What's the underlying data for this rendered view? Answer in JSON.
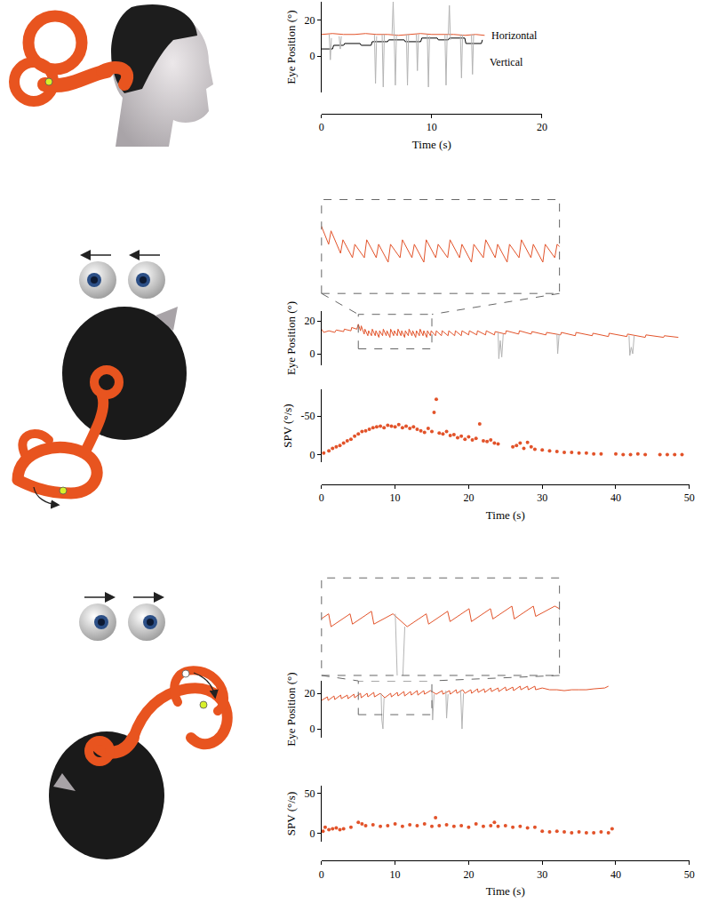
{
  "chart_data": [
    {
      "type": "line",
      "xlabel": "Time (s)",
      "ylabel": "Eye Position (°)",
      "xlim": [
        0,
        20
      ],
      "xticks": [
        0,
        10,
        20
      ],
      "ylim": [
        -20,
        30
      ],
      "yticks": [
        0,
        20
      ],
      "series": [
        {
          "name": "Horizontal",
          "color": "#e2532a",
          "x": [
            0,
            1,
            2,
            3,
            4,
            5,
            6,
            7,
            8,
            9,
            10,
            11,
            12,
            13,
            14,
            14.8
          ],
          "values": [
            12,
            12.5,
            12,
            12,
            12.5,
            12,
            12,
            11.5,
            12,
            12.5,
            12,
            12,
            12,
            11.5,
            12,
            11.5
          ]
        },
        {
          "name": "Vertical",
          "color": "#000000",
          "x": [
            0,
            1,
            1.1,
            2,
            2.1,
            3.5,
            3.6,
            4.5,
            4.6,
            6,
            6.1,
            7.5,
            7.6,
            9,
            9.1,
            10.5,
            10.6,
            11.5,
            11.6,
            13,
            13.1,
            14.5,
            14.6
          ],
          "values": [
            4,
            4,
            6,
            6,
            7,
            7,
            6,
            6,
            8,
            8,
            9,
            9,
            8,
            8,
            10,
            10,
            9,
            9,
            10,
            10,
            7,
            7,
            9
          ]
        },
        {
          "color": "#b4b4b4",
          "x": [
            0.7,
            0.8,
            0.9,
            0.9,
            1.6,
            1.7,
            1.8,
            1.8,
            4.8,
            4.9,
            5.0,
            5.0,
            5.5,
            5.6,
            5.7,
            5.7,
            6.4,
            6.5,
            6.6,
            6.7,
            6.8,
            6.8,
            7.7,
            7.8,
            7.9,
            7.9,
            8.6,
            8.7,
            8.8,
            8.8,
            9.6,
            9.7,
            9.8,
            9.8,
            11.2,
            11.3,
            11.4,
            11.4,
            11.5,
            11.6,
            11.7,
            11.7,
            12.6,
            12.7,
            12.8,
            12.8,
            13.6,
            13.7,
            13.8
          ],
          "values": [
            12,
            -2,
            10,
            null,
            11,
            4,
            11,
            null,
            12,
            -15,
            11,
            null,
            12,
            -17,
            12,
            null,
            12,
            30,
            10,
            -16,
            12,
            null,
            12,
            -16,
            12,
            null,
            12,
            -8,
            12,
            null,
            12,
            -17,
            11,
            null,
            12,
            -16,
            12,
            null,
            12,
            28,
            9,
            null,
            12,
            -12,
            12,
            null,
            12,
            -10,
            12
          ]
        }
      ]
    },
    {
      "type": "line",
      "ylabel": "Eye Position (°)",
      "tick_labels": "y",
      "xlim": [
        0,
        50
      ],
      "ylim": [
        -7,
        26
      ],
      "yticks": [
        0,
        20
      ],
      "inset": {
        "xlim": [
          5,
          15
        ],
        "ylim": [
          3,
          24
        ]
      },
      "series": [
        {
          "color": "#e2532a",
          "x": [
            0,
            0.3,
            1,
            1.8,
            2,
            3,
            3.1,
            4,
            4.1,
            4.8,
            5,
            5.3,
            5.4,
            5.8,
            5.9,
            6.3,
            6.4,
            6.8,
            6.9,
            7.3,
            7.4,
            7.8,
            7.9,
            8.3,
            8.4,
            8.8,
            8.9,
            9.3,
            9.4,
            9.8,
            9.9,
            10.3,
            10.4,
            10.8,
            10.9,
            11.3,
            11.4,
            11.8,
            11.9,
            12.3,
            12.4,
            12.8,
            12.9,
            13.3,
            13.4,
            13.8,
            13.9,
            14.3,
            14.4,
            14.8,
            14.9,
            15.5,
            15.6,
            16.3,
            16.4,
            17.2,
            17.3,
            18.1,
            18.2,
            19,
            19.1,
            20,
            20.1,
            21.1,
            21.2,
            22.3,
            22.4,
            23.5,
            23.6,
            25,
            25.1,
            26.8,
            26.9,
            28.5,
            28.6,
            30.5,
            30.6,
            32.5,
            32.6,
            34.5,
            34.6,
            36.8,
            36.9,
            39,
            39.1,
            41.5,
            41.6,
            44,
            44.1,
            46.5,
            46.6,
            48.5
          ],
          "values": [
            15,
            13,
            14,
            13,
            14.5,
            13.5,
            15,
            14,
            16,
            15,
            18,
            14,
            17,
            12,
            15,
            11,
            14,
            11,
            15,
            11,
            14,
            10,
            14,
            11,
            15,
            11,
            14,
            10,
            15,
            11,
            14,
            11,
            15,
            11,
            14,
            10,
            14,
            11,
            15,
            11,
            14,
            10,
            14,
            11,
            15,
            11,
            14,
            10,
            14,
            11,
            14,
            11,
            14,
            11,
            14,
            11,
            14,
            11,
            14,
            11,
            14,
            11.5,
            14,
            11.5,
            14,
            11.5,
            14,
            11.5,
            13.5,
            12,
            14,
            12,
            14,
            12,
            13.5,
            11.5,
            13,
            11.5,
            13,
            11,
            13,
            11,
            12.5,
            10.5,
            12.5,
            10.5,
            12,
            10,
            11.5,
            10,
            11,
            10
          ]
        },
        {
          "color": "#b4b4b4",
          "x": [
            24,
            24.1,
            24.3,
            24.5,
            24.7,
            24.7,
            32,
            32.1,
            32.3,
            32.3,
            41.8,
            41.9,
            42.1,
            42.3,
            42.5
          ],
          "values": [
            13,
            -3,
            8,
            -2,
            12,
            null,
            12,
            0,
            12,
            null,
            11,
            -1,
            4,
            0,
            11
          ]
        }
      ]
    },
    {
      "type": "scatter",
      "xlabel": "Time (s)",
      "ylabel": "SPV (°/s)",
      "marker": "circle",
      "xlim": [
        0,
        50
      ],
      "xticks": [
        0,
        10,
        20,
        30,
        40,
        50
      ],
      "ylim": [
        10,
        -85
      ],
      "yticks": [
        -50,
        0
      ],
      "series": [
        {
          "color": "#e2532a",
          "x": [
            0.3,
            1,
            1.5,
            2,
            2.5,
            3,
            3.5,
            4,
            4.5,
            5,
            5.5,
            6,
            6.5,
            7,
            7.5,
            8,
            8.5,
            9,
            9.5,
            10,
            10.5,
            11,
            11.5,
            12,
            12.5,
            13,
            13.5,
            14,
            14.5,
            15,
            15.3,
            15.6,
            16,
            16.5,
            17,
            17.5,
            18,
            18.5,
            19,
            19.5,
            20,
            20.5,
            21,
            21.5,
            22,
            22.5,
            23,
            23.5,
            24,
            26,
            26.5,
            27,
            27.5,
            28,
            28.5,
            29,
            30,
            31,
            32,
            33,
            34,
            35,
            36,
            37,
            38,
            40,
            41,
            42,
            43,
            44,
            46,
            47,
            48,
            49
          ],
          "values": [
            -2,
            -5,
            -8,
            -10,
            -12,
            -15,
            -18,
            -20,
            -24,
            -27,
            -30,
            -31,
            -33,
            -35,
            -36,
            -37,
            -35,
            -38,
            -37,
            -36,
            -39,
            -35,
            -37,
            -34,
            -36,
            -33,
            -31,
            -29,
            -34,
            -30,
            -55,
            -72,
            -28,
            -27,
            -30,
            -25,
            -26,
            -22,
            -24,
            -20,
            -23,
            -19,
            -21,
            -40,
            -18,
            -17,
            -19,
            -15,
            -14,
            -10,
            -12,
            -15,
            -8,
            -16,
            -10,
            -7,
            -6,
            -5,
            -4,
            -3,
            -3,
            -2,
            -2,
            -1,
            -1,
            -1,
            0,
            0,
            -1,
            0,
            0,
            0,
            0,
            0
          ]
        }
      ]
    },
    {
      "type": "line",
      "ylabel": "Eye Position (°)",
      "tick_labels": "y",
      "xlim": [
        0,
        50
      ],
      "ylim": [
        -5,
        27
      ],
      "yticks": [
        0,
        20
      ],
      "inset": {
        "xlim": [
          5,
          15
        ],
        "ylim": [
          8,
          27
        ]
      },
      "series": [
        {
          "color": "#e2532a",
          "x": [
            0,
            0.8,
            0.9,
            1.7,
            1.8,
            2.6,
            2.7,
            3.5,
            3.6,
            4.4,
            4.5,
            5.3,
            5.4,
            6.2,
            6.3,
            7.1,
            7.2,
            8.0,
            8.6,
            9.4,
            9.5,
            10.3,
            10.4,
            11.2,
            11.3,
            12.1,
            12.2,
            13,
            13.1,
            13.9,
            14,
            14.8,
            15.6,
            16.4,
            16.5,
            17.4,
            17.5,
            18.3,
            18.4,
            19.2,
            19.5,
            20.3,
            20.4,
            21.2,
            21.3,
            22.1,
            22.2,
            23,
            23.1,
            24,
            24.1,
            25,
            25.1,
            26,
            26.1,
            27,
            27.1,
            28,
            28.1,
            29,
            29.1,
            30,
            31,
            32,
            33,
            34,
            35,
            36,
            37,
            38,
            38.5,
            39
          ],
          "values": [
            16,
            18,
            16,
            18.5,
            16.5,
            19,
            17,
            19,
            17,
            19.5,
            17.5,
            20,
            17.5,
            20,
            18,
            20.5,
            18,
            20,
            17.5,
            20,
            18,
            20.5,
            18.5,
            21,
            18.5,
            21,
            19,
            21.5,
            19,
            21.5,
            19.5,
            21.5,
            19.5,
            21.5,
            19.5,
            21.5,
            19.5,
            22,
            20,
            22,
            20,
            22,
            20,
            22.5,
            20.5,
            22.5,
            20.5,
            23,
            21,
            23,
            21,
            23.5,
            21.5,
            23.5,
            21.5,
            24,
            22,
            24,
            22,
            24,
            22,
            23,
            22,
            22,
            21.5,
            22,
            22,
            22,
            22.5,
            23,
            23,
            24
          ]
        },
        {
          "color": "#b4b4b4",
          "x": [
            8.1,
            8.2,
            8.35,
            8.5,
            8.5,
            15,
            15.1,
            15.3,
            15.3,
            16.9,
            17,
            17.2,
            17.2,
            18.9,
            19,
            19.1,
            19.3
          ],
          "values": [
            20,
            5,
            0,
            17.5,
            null,
            21.5,
            5,
            19.5,
            null,
            21.5,
            6,
            19.5,
            null,
            22,
            3,
            0,
            20
          ]
        }
      ]
    },
    {
      "type": "scatter",
      "xlabel": "Time (s)",
      "ylabel": "SPV (°/s)",
      "marker": "circle",
      "xlim": [
        0,
        50
      ],
      "xticks": [
        0,
        10,
        20,
        30,
        40,
        50
      ],
      "ylim": [
        -10,
        60
      ],
      "yticks": [
        0,
        50
      ],
      "series": [
        {
          "color": "#e2532a",
          "x": [
            0.2,
            0.5,
            1,
            1.5,
            2,
            2.5,
            3,
            4,
            5,
            5.5,
            6,
            7,
            8,
            9,
            10,
            11,
            12,
            13,
            14,
            15,
            15.5,
            16,
            17,
            18,
            19,
            20,
            21,
            22,
            23,
            23.5,
            24,
            25,
            26,
            27,
            28,
            29,
            30,
            31,
            32,
            33,
            34,
            35,
            36,
            37,
            38,
            39,
            39.5
          ],
          "values": [
            3,
            8,
            5,
            6,
            7,
            5,
            6,
            8,
            14,
            12,
            10,
            11,
            9,
            10,
            12,
            9,
            11,
            10,
            12,
            9,
            20,
            10,
            11,
            9,
            10,
            8,
            12,
            9,
            10,
            14,
            9,
            10,
            8,
            9,
            7,
            8,
            3,
            2,
            3,
            2,
            1,
            2,
            1,
            1,
            2,
            1,
            6
          ]
        }
      ]
    }
  ]
}
